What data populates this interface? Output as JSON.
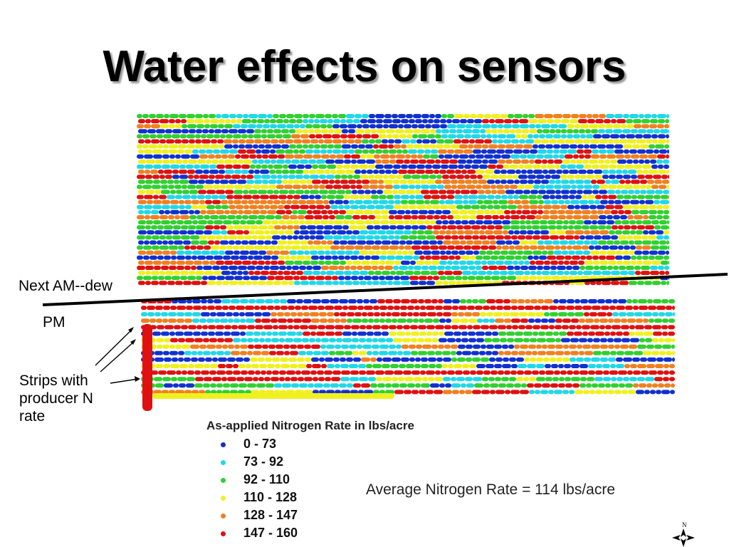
{
  "slide": {
    "title": "Water effects on sensors"
  },
  "annotations": {
    "dew_label": "Next AM--dew",
    "pm_label": "PM",
    "strips_label": "Strips with producer N rate"
  },
  "legend": {
    "title": "As-applied Nitrogen Rate in lbs/acre",
    "items": [
      {
        "label": "0 - 73",
        "color": "#1030d0"
      },
      {
        "label": "73 - 92",
        "color": "#20d8e8"
      },
      {
        "label": "92 - 110",
        "color": "#30d030"
      },
      {
        "label": "110 - 128",
        "color": "#f0f020"
      },
      {
        "label": "128 - 147",
        "color": "#f08020"
      },
      {
        "label": "147 - 160",
        "color": "#e01010"
      }
    ]
  },
  "average_text": "Average Nitrogen Rate = 114 lbs/acre",
  "north_arrow": {
    "label": "N",
    "icon": "north-arrow-icon"
  },
  "map": {
    "colors": [
      "#1030d0",
      "#20d8e8",
      "#30d030",
      "#f0f020",
      "#f08020",
      "#e01010"
    ],
    "divider_color": "#000000",
    "pass_rows_upper": 34,
    "pass_rows_lower": 15,
    "strip_rows": [
      1,
      4,
      11
    ],
    "pass_colors": {
      "dew_gap_row_color": "#ffffff",
      "strip_color": "#e01010"
    }
  }
}
